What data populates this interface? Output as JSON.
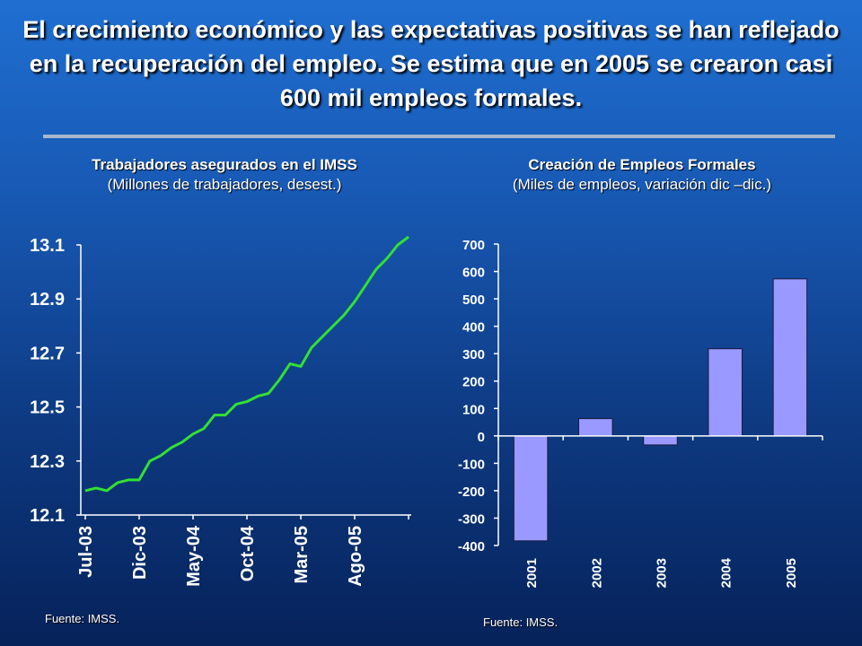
{
  "slide": {
    "title": "El crecimiento económico y las expectativas positivas se han reflejado en la recuperación del empleo. Se estima que en 2005 se crearon casi 600 mil empleos formales."
  },
  "left_chart": {
    "title": "Trabajadores asegurados en el IMSS",
    "subtitle": "(Millones de trabajadores, desest.)",
    "source": "Fuente: IMSS."
  },
  "right_chart": {
    "title": "Creación de Empleos Formales",
    "subtitle": "(Miles de empleos, variación dic –dic.)",
    "source": "Fuente: IMSS."
  },
  "colors": {
    "line": "#33e033",
    "bar_fill": "#9999ff",
    "bar_stroke": "#1a1a40",
    "axis": "#ffffff"
  },
  "chart_data": [
    {
      "type": "line",
      "title": "Trabajadores asegurados en el IMSS",
      "subtitle": "(Millones de trabajadores, desest.)",
      "x_tick_labels": [
        "Jul-03",
        "Dic-03",
        "May-04",
        "Oct-04",
        "Mar-05",
        "Ago-05"
      ],
      "x": [
        "Jul-03",
        "Ago-03",
        "Sep-03",
        "Oct-03",
        "Nov-03",
        "Dic-03",
        "Ene-04",
        "Feb-04",
        "Mar-04",
        "Abr-04",
        "May-04",
        "Jun-04",
        "Jul-04",
        "Ago-04",
        "Sep-04",
        "Oct-04",
        "Nov-04",
        "Dic-04",
        "Ene-05",
        "Feb-05",
        "Mar-05",
        "Abr-05",
        "May-05",
        "Jun-05",
        "Jul-05",
        "Ago-05",
        "Sep-05",
        "Oct-05",
        "Nov-05",
        "Dic-05",
        "Ene-06"
      ],
      "series": [
        {
          "values": [
            12.19,
            12.2,
            12.19,
            12.22,
            12.23,
            12.23,
            12.3,
            12.32,
            12.35,
            12.37,
            12.4,
            12.42,
            12.47,
            12.47,
            12.51,
            12.52,
            12.54,
            12.55,
            12.6,
            12.66,
            12.65,
            12.72,
            12.76,
            12.8,
            12.84,
            12.89,
            12.95,
            13.01,
            13.05,
            13.1,
            13.13
          ]
        }
      ],
      "y_ticks": [
        12.1,
        12.3,
        12.5,
        12.7,
        12.9,
        13.1
      ],
      "ylim": [
        12.1,
        13.1
      ],
      "grid": false,
      "legend": "none"
    },
    {
      "type": "bar",
      "title": "Creación de Empleos Formales",
      "subtitle": "(Miles de empleos, variación dic –dic.)",
      "categories": [
        "2001",
        "2002",
        "2003",
        "2004",
        "2005"
      ],
      "values": [
        -383,
        63,
        -33,
        318,
        573
      ],
      "y_ticks": [
        -400,
        -300,
        -200,
        -100,
        0,
        100,
        200,
        300,
        400,
        500,
        600,
        700
      ],
      "ylim": [
        -400,
        700
      ],
      "grid": false,
      "legend": "none"
    }
  ]
}
